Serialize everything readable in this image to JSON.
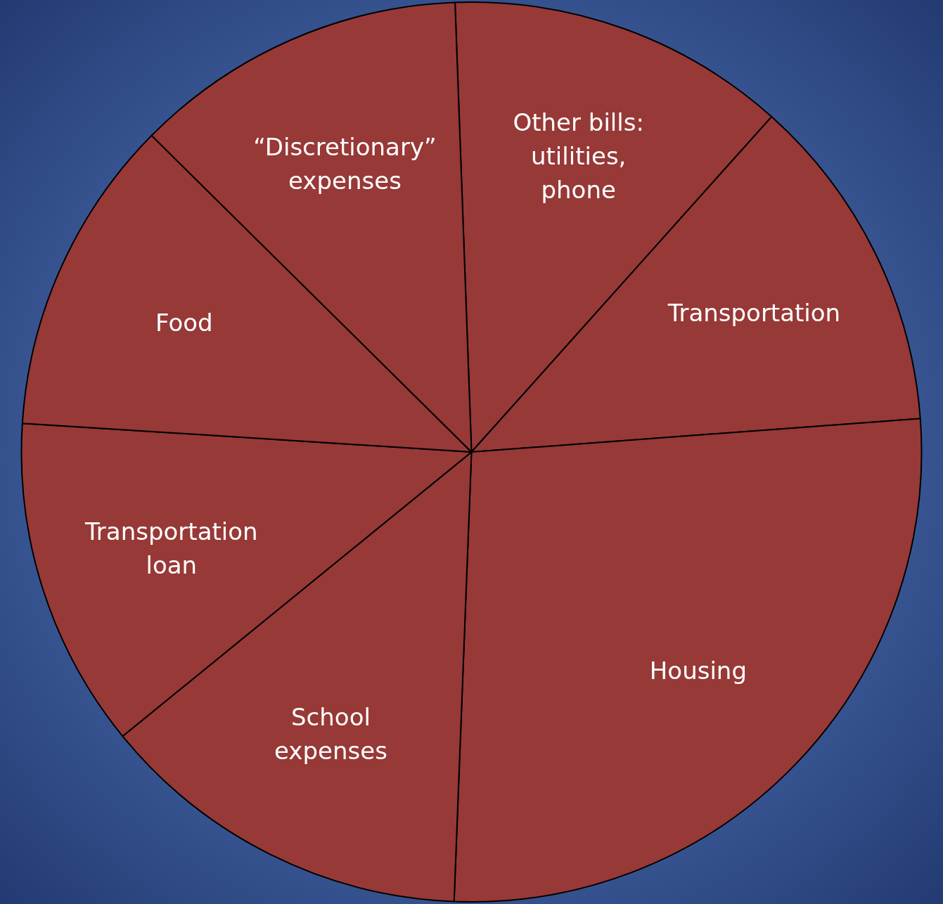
{
  "chart_data": {
    "type": "pie",
    "categories": [
      "Other bills: utilities, phone",
      "Transportation",
      "Housing",
      "School expenses",
      "Transportation loan",
      "Food",
      "“Discretionary” expenses"
    ],
    "values": [
      12.2,
      12.2,
      26.8,
      13.5,
      11.9,
      11.4,
      12.0
    ],
    "colors": [
      "#973937",
      "#973937",
      "#973937",
      "#973937",
      "#973937",
      "#973937",
      "#973937"
    ],
    "legend": false
  }
}
